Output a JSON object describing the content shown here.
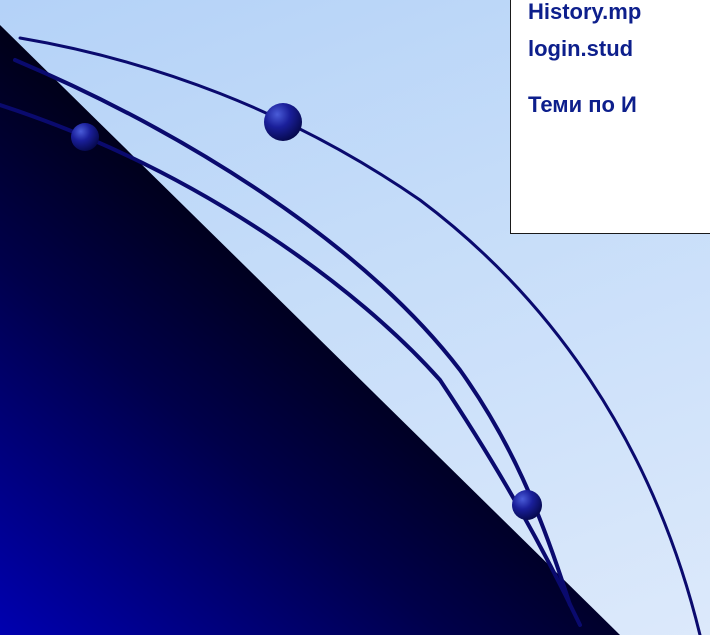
{
  "slide": {
    "colors": {
      "background_top": "#b4d2f8",
      "background_bottom": "#dce9fb",
      "triangle_dark": "#000010",
      "triangle_blue": "#0000b0",
      "curves": "#0a0a6e",
      "text": "#0d1f8c"
    }
  },
  "textbox": {
    "lines": [
      "History.mp",
      "login.stud",
      "Теми по И"
    ]
  }
}
